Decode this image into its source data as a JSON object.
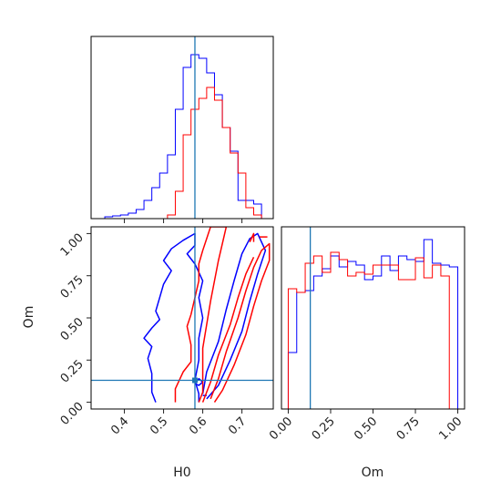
{
  "chart_data": {
    "type": "corner",
    "parameters": [
      "H0",
      "Om"
    ],
    "truth": {
      "H0": 0.58,
      "Om": 0.13
    },
    "colors": {
      "series_a": "#0000ff",
      "series_b": "#ff0000",
      "truth": "#1f77b4"
    },
    "series": [
      {
        "color": "#0000ff",
        "role": "series_a"
      },
      {
        "color": "#ff0000",
        "role": "series_b"
      }
    ],
    "panels": [
      {
        "id": "hist-H0",
        "type": "histogram-step",
        "xlim": [
          0.315,
          0.78
        ],
        "ylim": [
          0,
          1.0
        ],
        "xticks": [
          0.4,
          0.5,
          0.6,
          0.7
        ],
        "tick_labels_shown": false,
        "bins": {
          "start": 0.33,
          "width": 0.02,
          "count": 22
        },
        "series_a_heights": [
          0.0,
          0.01,
          0.015,
          0.02,
          0.03,
          0.05,
          0.1,
          0.17,
          0.25,
          0.35,
          0.6,
          0.83,
          0.9,
          0.88,
          0.8,
          0.68,
          0.5,
          0.37,
          0.1,
          0.1,
          0.08,
          0.0
        ],
        "series_b_heights": [
          0.0,
          0.0,
          0.0,
          0.0,
          0.0,
          0.0,
          0.0,
          0.0,
          0.0,
          0.02,
          0.15,
          0.46,
          0.6,
          0.66,
          0.72,
          0.65,
          0.5,
          0.36,
          0.25,
          0.06,
          0.02,
          0.0
        ]
      },
      {
        "id": "contour-H0-Om",
        "type": "contour",
        "xlim": [
          0.315,
          0.78
        ],
        "ylim": [
          -0.04,
          1.04
        ],
        "xlabel": "H0",
        "ylabel": "Om",
        "xticks": [
          0.4,
          0.5,
          0.6,
          0.7
        ],
        "xtick_labels": [
          "0.4",
          "0.5",
          "0.6",
          "0.7"
        ],
        "yticks": [
          0.0,
          0.25,
          0.5,
          0.75,
          1.0
        ],
        "ytick_labels": [
          "0.00",
          "0.25",
          "0.50",
          "0.75",
          "1.00"
        ],
        "series_a_contours": [
          [
            [
              0.48,
              0.0
            ],
            [
              0.47,
              0.06
            ],
            [
              0.47,
              0.17
            ],
            [
              0.46,
              0.26
            ],
            [
              0.47,
              0.33
            ],
            [
              0.45,
              0.38
            ],
            [
              0.47,
              0.44
            ],
            [
              0.49,
              0.49
            ],
            [
              0.48,
              0.54
            ],
            [
              0.49,
              0.62
            ],
            [
              0.5,
              0.7
            ],
            [
              0.52,
              0.78
            ],
            [
              0.5,
              0.84
            ],
            [
              0.52,
              0.91
            ],
            [
              0.55,
              0.96
            ],
            [
              0.58,
              1.0
            ],
            [
              0.58,
              0.93
            ],
            [
              0.56,
              0.88
            ],
            [
              0.58,
              0.82
            ],
            [
              0.6,
              0.72
            ],
            [
              0.59,
              0.62
            ],
            [
              0.6,
              0.5
            ],
            [
              0.59,
              0.38
            ],
            [
              0.59,
              0.25
            ],
            [
              0.58,
              0.13
            ],
            [
              0.59,
              0.05
            ],
            [
              0.59,
              0.0
            ]
          ],
          [
            [
              0.6,
              0.05
            ],
            [
              0.61,
              0.18
            ],
            [
              0.64,
              0.36
            ],
            [
              0.66,
              0.55
            ],
            [
              0.68,
              0.72
            ],
            [
              0.7,
              0.88
            ],
            [
              0.72,
              0.97
            ],
            [
              0.74,
              1.0
            ],
            [
              0.76,
              0.9
            ],
            [
              0.74,
              0.76
            ],
            [
              0.72,
              0.6
            ],
            [
              0.7,
              0.42
            ],
            [
              0.67,
              0.25
            ],
            [
              0.64,
              0.1
            ],
            [
              0.61,
              0.02
            ]
          ],
          [
            [
              0.58,
              0.11
            ],
            [
              0.59,
              0.14
            ],
            [
              0.6,
              0.12
            ],
            [
              0.59,
              0.1
            ],
            [
              0.58,
              0.11
            ]
          ],
          [
            [
              0.6,
              0.04
            ],
            [
              0.61,
              0.04
            ]
          ]
        ],
        "series_b_contours": [
          [
            [
              0.53,
              0.0
            ],
            [
              0.53,
              0.08
            ],
            [
              0.55,
              0.18
            ],
            [
              0.57,
              0.24
            ],
            [
              0.57,
              0.34
            ],
            [
              0.56,
              0.45
            ],
            [
              0.57,
              0.52
            ],
            [
              0.58,
              0.62
            ],
            [
              0.59,
              0.72
            ],
            [
              0.59,
              0.82
            ],
            [
              0.6,
              0.9
            ],
            [
              0.61,
              0.97
            ],
            [
              0.62,
              1.04
            ],
            [
              0.66,
              1.04
            ],
            [
              0.65,
              0.94
            ],
            [
              0.64,
              0.84
            ],
            [
              0.63,
              0.72
            ],
            [
              0.62,
              0.6
            ],
            [
              0.61,
              0.46
            ],
            [
              0.6,
              0.32
            ],
            [
              0.6,
              0.18
            ],
            [
              0.6,
              0.06
            ],
            [
              0.59,
              0.0
            ]
          ],
          [
            [
              0.62,
              0.02
            ],
            [
              0.64,
              0.14
            ],
            [
              0.66,
              0.3
            ],
            [
              0.69,
              0.5
            ],
            [
              0.71,
              0.66
            ],
            [
              0.73,
              0.8
            ],
            [
              0.75,
              0.9
            ],
            [
              0.77,
              0.94
            ],
            [
              0.77,
              0.84
            ],
            [
              0.75,
              0.72
            ],
            [
              0.73,
              0.57
            ],
            [
              0.71,
              0.4
            ],
            [
              0.68,
              0.22
            ],
            [
              0.65,
              0.07
            ],
            [
              0.63,
              0.0
            ]
          ],
          [
            [
              0.6,
              0.0
            ],
            [
              0.62,
              0.12
            ],
            [
              0.64,
              0.28
            ],
            [
              0.67,
              0.46
            ],
            [
              0.69,
              0.62
            ],
            [
              0.71,
              0.76
            ],
            [
              0.73,
              0.86
            ]
          ],
          [
            [
              0.72,
              0.95
            ],
            [
              0.73,
              1.0
            ],
            [
              0.73,
              0.95
            ]
          ],
          [
            [
              0.745,
              0.98
            ],
            [
              0.765,
              0.98
            ]
          ]
        ]
      },
      {
        "id": "hist-Om",
        "type": "histogram-step",
        "xlim": [
          -0.04,
          1.04
        ],
        "ylim": [
          0,
          1.0
        ],
        "xlabel": "Om",
        "xticks": [
          0.0,
          0.25,
          0.5,
          0.75,
          1.0
        ],
        "xtick_labels": [
          "0.00",
          "0.25",
          "0.50",
          "0.75",
          "1.00"
        ],
        "bins": {
          "start": 0.0,
          "width": 0.05,
          "count": 20
        },
        "series_a_heights": [
          0.31,
          0.64,
          0.65,
          0.73,
          0.77,
          0.84,
          0.78,
          0.81,
          0.79,
          0.71,
          0.73,
          0.84,
          0.76,
          0.84,
          0.82,
          0.81,
          0.93,
          0.8,
          0.79,
          0.78
        ],
        "series_b_heights": [
          0.66,
          0.64,
          0.8,
          0.84,
          0.75,
          0.86,
          0.82,
          0.73,
          0.75,
          0.74,
          0.79,
          0.79,
          0.79,
          0.71,
          0.71,
          0.83,
          0.72,
          0.79,
          0.73,
          0.0
        ]
      }
    ]
  }
}
